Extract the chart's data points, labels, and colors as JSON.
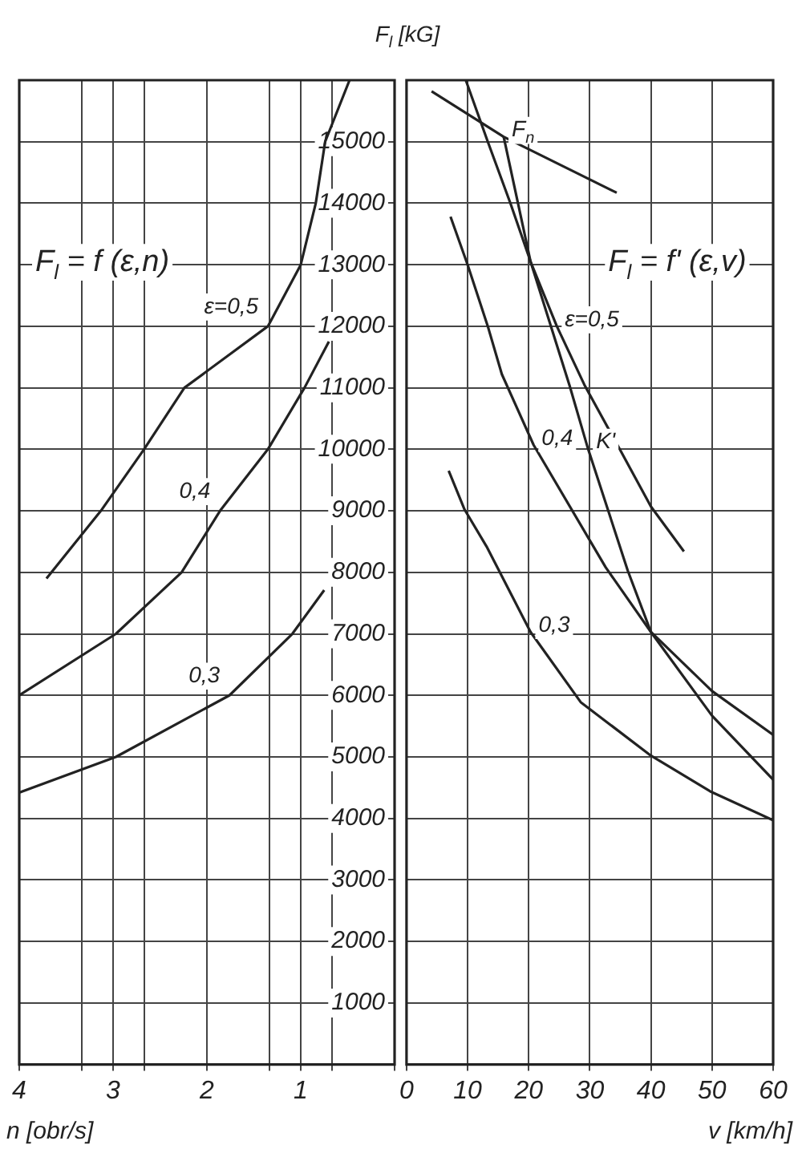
{
  "chart_data": [
    {
      "type": "line",
      "title": "F$_{l}$ = f (ε,n)",
      "ylabel": "F$_{l}$ [kG]",
      "xlabel": "n [obr/s]",
      "xlim": [
        4,
        0
      ],
      "xticks": [
        4,
        {
          "value": 3.333,
          "label": null
        },
        3,
        {
          "value": 2.667,
          "label": null
        },
        2,
        {
          "value": 1.333,
          "label": null
        },
        1,
        {
          "value": 0.667,
          "label": null
        },
        {
          "value": 0,
          "label": null
        }
      ],
      "ylim": [
        0,
        16000
      ],
      "yticks": [
        1000,
        2000,
        3000,
        4000,
        5000,
        6000,
        7000,
        8000,
        9000,
        10000,
        11000,
        12000,
        13000,
        14000,
        15000
      ],
      "grid": true,
      "series": [
        {
          "name": "ε=0,5",
          "color": "#222222",
          "x": [
            3.71,
            3.13,
            2.67,
            2.24,
            1.35,
            1.0,
            0.84,
            0.74,
            0.48
          ],
          "values": [
            7900,
            9000,
            10000,
            11000,
            12000,
            13000,
            14000,
            15000,
            16000
          ]
        },
        {
          "name": "0,4",
          "color": "#222222",
          "x": [
            4.0,
            2.97,
            2.27,
            1.86,
            1.35,
            0.96,
            0.7
          ],
          "values": [
            6000,
            7000,
            8000,
            9000,
            10000,
            11000,
            11750
          ]
        },
        {
          "name": "0,3",
          "color": "#222222",
          "x": [
            4.0,
            2.97,
            1.76,
            1.09,
            0.75
          ],
          "values": [
            4420,
            5000,
            6000,
            7000,
            7710
          ]
        }
      ]
    },
    {
      "type": "line",
      "title": "F$_{l}$ = f' (ε,v)",
      "xlabel": "v [km/h]",
      "xlim": [
        0,
        60
      ],
      "xticks": [
        0,
        10,
        20,
        30,
        40,
        50,
        60
      ],
      "ylim": [
        0,
        16000
      ],
      "yticks": [
        1000,
        2000,
        3000,
        4000,
        5000,
        6000,
        7000,
        8000,
        9000,
        10000,
        11000,
        12000,
        13000,
        14000,
        15000
      ],
      "grid": true,
      "tick_labels": "x",
      "series": [
        {
          "name": "ε=0,5",
          "color": "#222222",
          "x": [
            9.7,
            13.3,
            17,
            20.3,
            24.6,
            29.2,
            34.9,
            40,
            45.4
          ],
          "values": [
            16000,
            15000,
            14000,
            13050,
            12000,
            11030,
            10000,
            9070,
            8340
          ]
        },
        {
          "name": "0,4",
          "color": "#222222",
          "x": [
            7.2,
            10,
            13.3,
            15.6,
            20.8,
            32.6,
            40,
            50,
            60
          ],
          "values": [
            13780,
            13000,
            12000,
            11220,
            10070,
            8080,
            7030,
            6070,
            5360
          ]
        },
        {
          "name": "K'",
          "color": "#222222",
          "x": [
            15.9,
            20.3,
            26.7,
            29.7,
            36.2,
            40,
            50,
            60
          ],
          "values": [
            15080,
            13050,
            11030,
            10010,
            8030,
            7030,
            5670,
            4630
          ]
        },
        {
          "name": "0,3",
          "color": "#222222",
          "x": [
            6.9,
            9.5,
            13.1,
            20.3,
            28.5,
            40,
            49.7,
            60
          ],
          "values": [
            9650,
            9020,
            8420,
            7030,
            5890,
            5020,
            4440,
            3970
          ]
        },
        {
          "name": "F$_{n}$",
          "color": "#222222",
          "x": [
            4.1,
            15.9,
            34.4
          ],
          "values": [
            15820,
            15080,
            14170
          ]
        }
      ]
    }
  ]
}
